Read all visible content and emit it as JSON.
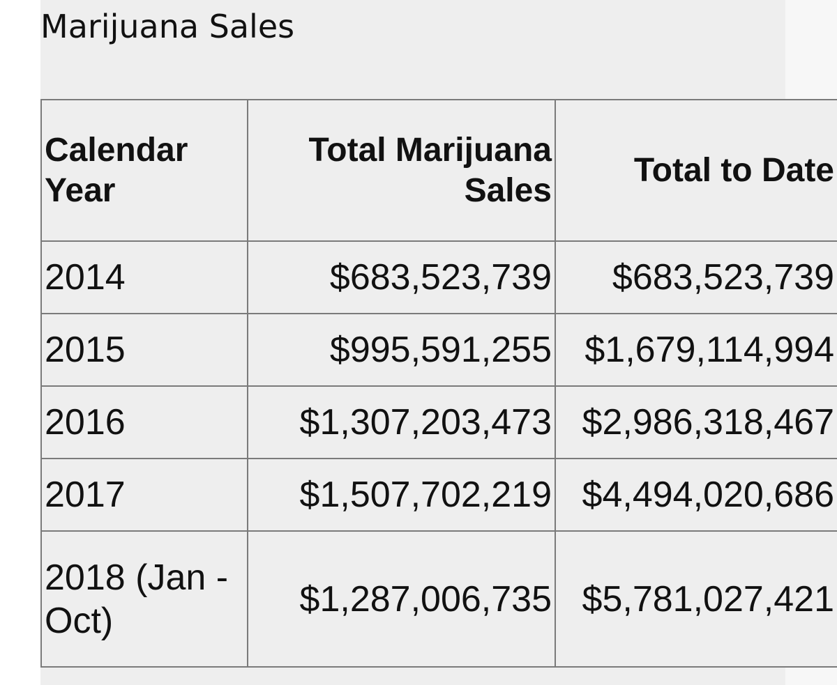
{
  "page": {
    "title": "Marijuana Sales"
  },
  "table": {
    "headers": {
      "year_line1": "Calendar",
      "year_line2": "Year",
      "sales_line1": "Total Marijuana",
      "sales_line2": "Sales",
      "total": "Total to Date"
    },
    "rows": [
      {
        "year": "2014",
        "sales": "$683,523,739",
        "total": "$683,523,739"
      },
      {
        "year": "2015",
        "sales": "$995,591,255",
        "total": "$1,679,114,994"
      },
      {
        "year": "2016",
        "sales": "$1,307,203,473",
        "total": "$2,986,318,467"
      },
      {
        "year": "2017",
        "sales": "$1,507,702,219",
        "total": "$4,494,020,686"
      },
      {
        "year_line1": "2018 (Jan -",
        "year_line2": "Oct)",
        "sales": "$1,287,006,735",
        "total": "$5,781,027,421"
      }
    ]
  }
}
